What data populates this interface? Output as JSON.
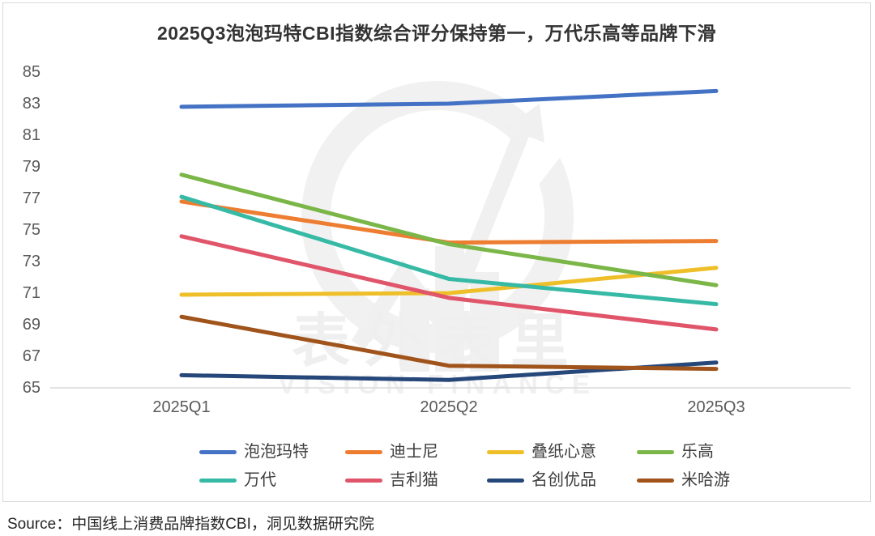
{
  "title": "2025Q3泡泡玛特CBI指数综合评分保持第一，万代乐高等品牌下滑",
  "source_line": "Source：中国线上消费品牌指数CBI，洞见数据研究院",
  "watermark": {
    "cn": "表外表里",
    "en": "VISION FINANCE"
  },
  "colors": {
    "axis_line": "#d9d9d9",
    "tick_text": "#595959",
    "title_text": "#333333"
  },
  "chart_data": {
    "type": "line",
    "title": "2025Q3泡泡玛特CBI指数综合评分保持第一，万代乐高等品牌下滑",
    "categories": [
      "2025Q1",
      "2025Q2",
      "2025Q3"
    ],
    "series": [
      {
        "name": "泡泡玛特",
        "color": "#4472C4",
        "values": [
          82.8,
          83.0,
          83.8
        ]
      },
      {
        "name": "迪士尼",
        "color": "#ED7D31",
        "values": [
          76.8,
          74.2,
          74.3
        ]
      },
      {
        "name": "叠纸心意",
        "color": "#EFBF2A",
        "values": [
          70.9,
          71.0,
          72.6
        ]
      },
      {
        "name": "乐高",
        "color": "#7AB648",
        "values": [
          78.5,
          74.1,
          71.5
        ]
      },
      {
        "name": "万代",
        "color": "#36B9A5",
        "values": [
          77.1,
          71.9,
          70.3
        ]
      },
      {
        "name": "吉利猫",
        "color": "#E0556A",
        "values": [
          74.6,
          70.7,
          68.7
        ]
      },
      {
        "name": "名创优品",
        "color": "#264779",
        "values": [
          65.8,
          65.5,
          66.6
        ]
      },
      {
        "name": "米哈游",
        "color": "#A0541C",
        "values": [
          69.5,
          66.4,
          66.2
        ]
      }
    ],
    "xlabel": "",
    "ylabel": "",
    "ylim": [
      65,
      85
    ],
    "yticks": [
      65,
      67,
      69,
      71,
      73,
      75,
      77,
      79,
      81,
      83,
      85
    ],
    "grid": false,
    "legend_position": "bottom"
  }
}
